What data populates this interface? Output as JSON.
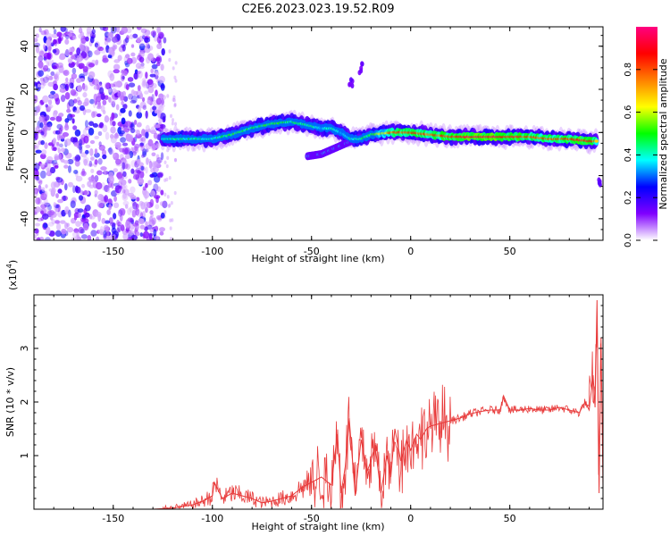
{
  "title": "C2E6.2023.023.19.52.R09",
  "chart_data": [
    {
      "type": "heatmap",
      "xlabel": "Height of straight line (km)",
      "ylabel": "Frequency (Hz)",
      "xlim": [
        -190,
        97
      ],
      "ylim": [
        -50,
        49
      ],
      "xticks": [
        -150,
        -100,
        -50,
        0,
        50
      ],
      "yticks": [
        -40,
        -20,
        0,
        20,
        40
      ],
      "colorbar": {
        "label": "Normalized spectral amplitude",
        "range": [
          0,
          1
        ],
        "ticks": [
          "0.0",
          "0.2",
          "0.4",
          "0.6",
          "0.8"
        ],
        "colors": [
          "#ffffff",
          "#8000ff",
          "#0000ff",
          "#00ffff",
          "#00ff00",
          "#ffff00",
          "#ff8000",
          "#ff0000",
          "#ff0080"
        ]
      },
      "noise_region_x": [
        -190,
        -124
      ],
      "ridge": {
        "x": [
          -125,
          -110,
          -100,
          -90,
          -80,
          -70,
          -60,
          -50,
          -45,
          -40,
          -35,
          -30,
          -25,
          -20,
          -10,
          0,
          10,
          20,
          30,
          40,
          50,
          60,
          70,
          80,
          90,
          94
        ],
        "y": [
          -3,
          -3,
          -3,
          -1,
          2,
          4,
          5,
          3,
          2,
          2,
          0,
          -3,
          -3,
          -1,
          0,
          0,
          -1,
          -2,
          -2,
          -2,
          -2,
          -2,
          -3,
          -3,
          -4,
          -4
        ],
        "amplitude": [
          0.4,
          0.45,
          0.4,
          0.5,
          0.45,
          0.5,
          0.45,
          0.45,
          0.35,
          0.45,
          0.35,
          0.4,
          0.45,
          0.45,
          0.8,
          0.85,
          0.8,
          0.9,
          0.95,
          0.95,
          0.9,
          0.85,
          0.8,
          0.85,
          0.95,
          0.75
        ]
      },
      "secondary_branch": {
        "x": [
          -52,
          -45,
          -40,
          -35,
          -30,
          -25
        ],
        "y": [
          -11,
          -10,
          -8,
          -6,
          -4,
          -2
        ]
      },
      "isolated_features": [
        {
          "x": -30,
          "y": 23
        },
        {
          "x": -25,
          "y": 30
        },
        {
          "x": 95,
          "y": -23
        }
      ]
    },
    {
      "type": "line",
      "xlabel": "Height of straight line (km)",
      "ylabel": "SNR (10 * v/v)",
      "y_multiplier": "(x10",
      "y_multiplier_exp": "4",
      "y_multiplier_close": ")",
      "xlim": [
        -190,
        97
      ],
      "ylim": [
        0,
        4
      ],
      "xticks": [
        -150,
        -100,
        -50,
        0,
        50
      ],
      "yticks": [
        1,
        2,
        3
      ],
      "color": "#e83a3a",
      "x": [
        -190,
        -170,
        -150,
        -130,
        -120,
        -110,
        -105,
        -100,
        -99,
        -95,
        -90,
        -85,
        -80,
        -75,
        -70,
        -65,
        -60,
        -55,
        -50,
        -45,
        -40,
        -37,
        -35,
        -33,
        -31,
        -28,
        -25,
        -22,
        -20,
        -18,
        -15,
        -12,
        -10,
        -8,
        -5,
        -2,
        0,
        3,
        5,
        8,
        10,
        15,
        20,
        25,
        30,
        35,
        40,
        45,
        47,
        50,
        55,
        60,
        65,
        70,
        75,
        80,
        85,
        88,
        90,
        92,
        93,
        94,
        95,
        96,
        97
      ],
      "y": [
        0,
        0,
        0,
        0,
        0.02,
        0.08,
        0.15,
        0.25,
        0.5,
        0.2,
        0.3,
        0.25,
        0.2,
        0.12,
        0.15,
        0.2,
        0.25,
        0.4,
        0.5,
        0.6,
        0.45,
        1.4,
        0.3,
        0.8,
        1.7,
        0.25,
        1.3,
        0.7,
        0.9,
        1.2,
        0.3,
        1.0,
        0.6,
        1.5,
        0.9,
        1.3,
        1.1,
        1.4,
        1.3,
        1.5,
        1.55,
        1.6,
        1.65,
        1.7,
        1.78,
        1.82,
        1.85,
        1.85,
        2.1,
        1.85,
        1.85,
        1.88,
        1.85,
        1.85,
        1.9,
        1.85,
        1.8,
        2.0,
        1.85,
        2.5,
        1.9,
        3.9,
        0.3,
        3.2,
        0.4
      ]
    }
  ]
}
